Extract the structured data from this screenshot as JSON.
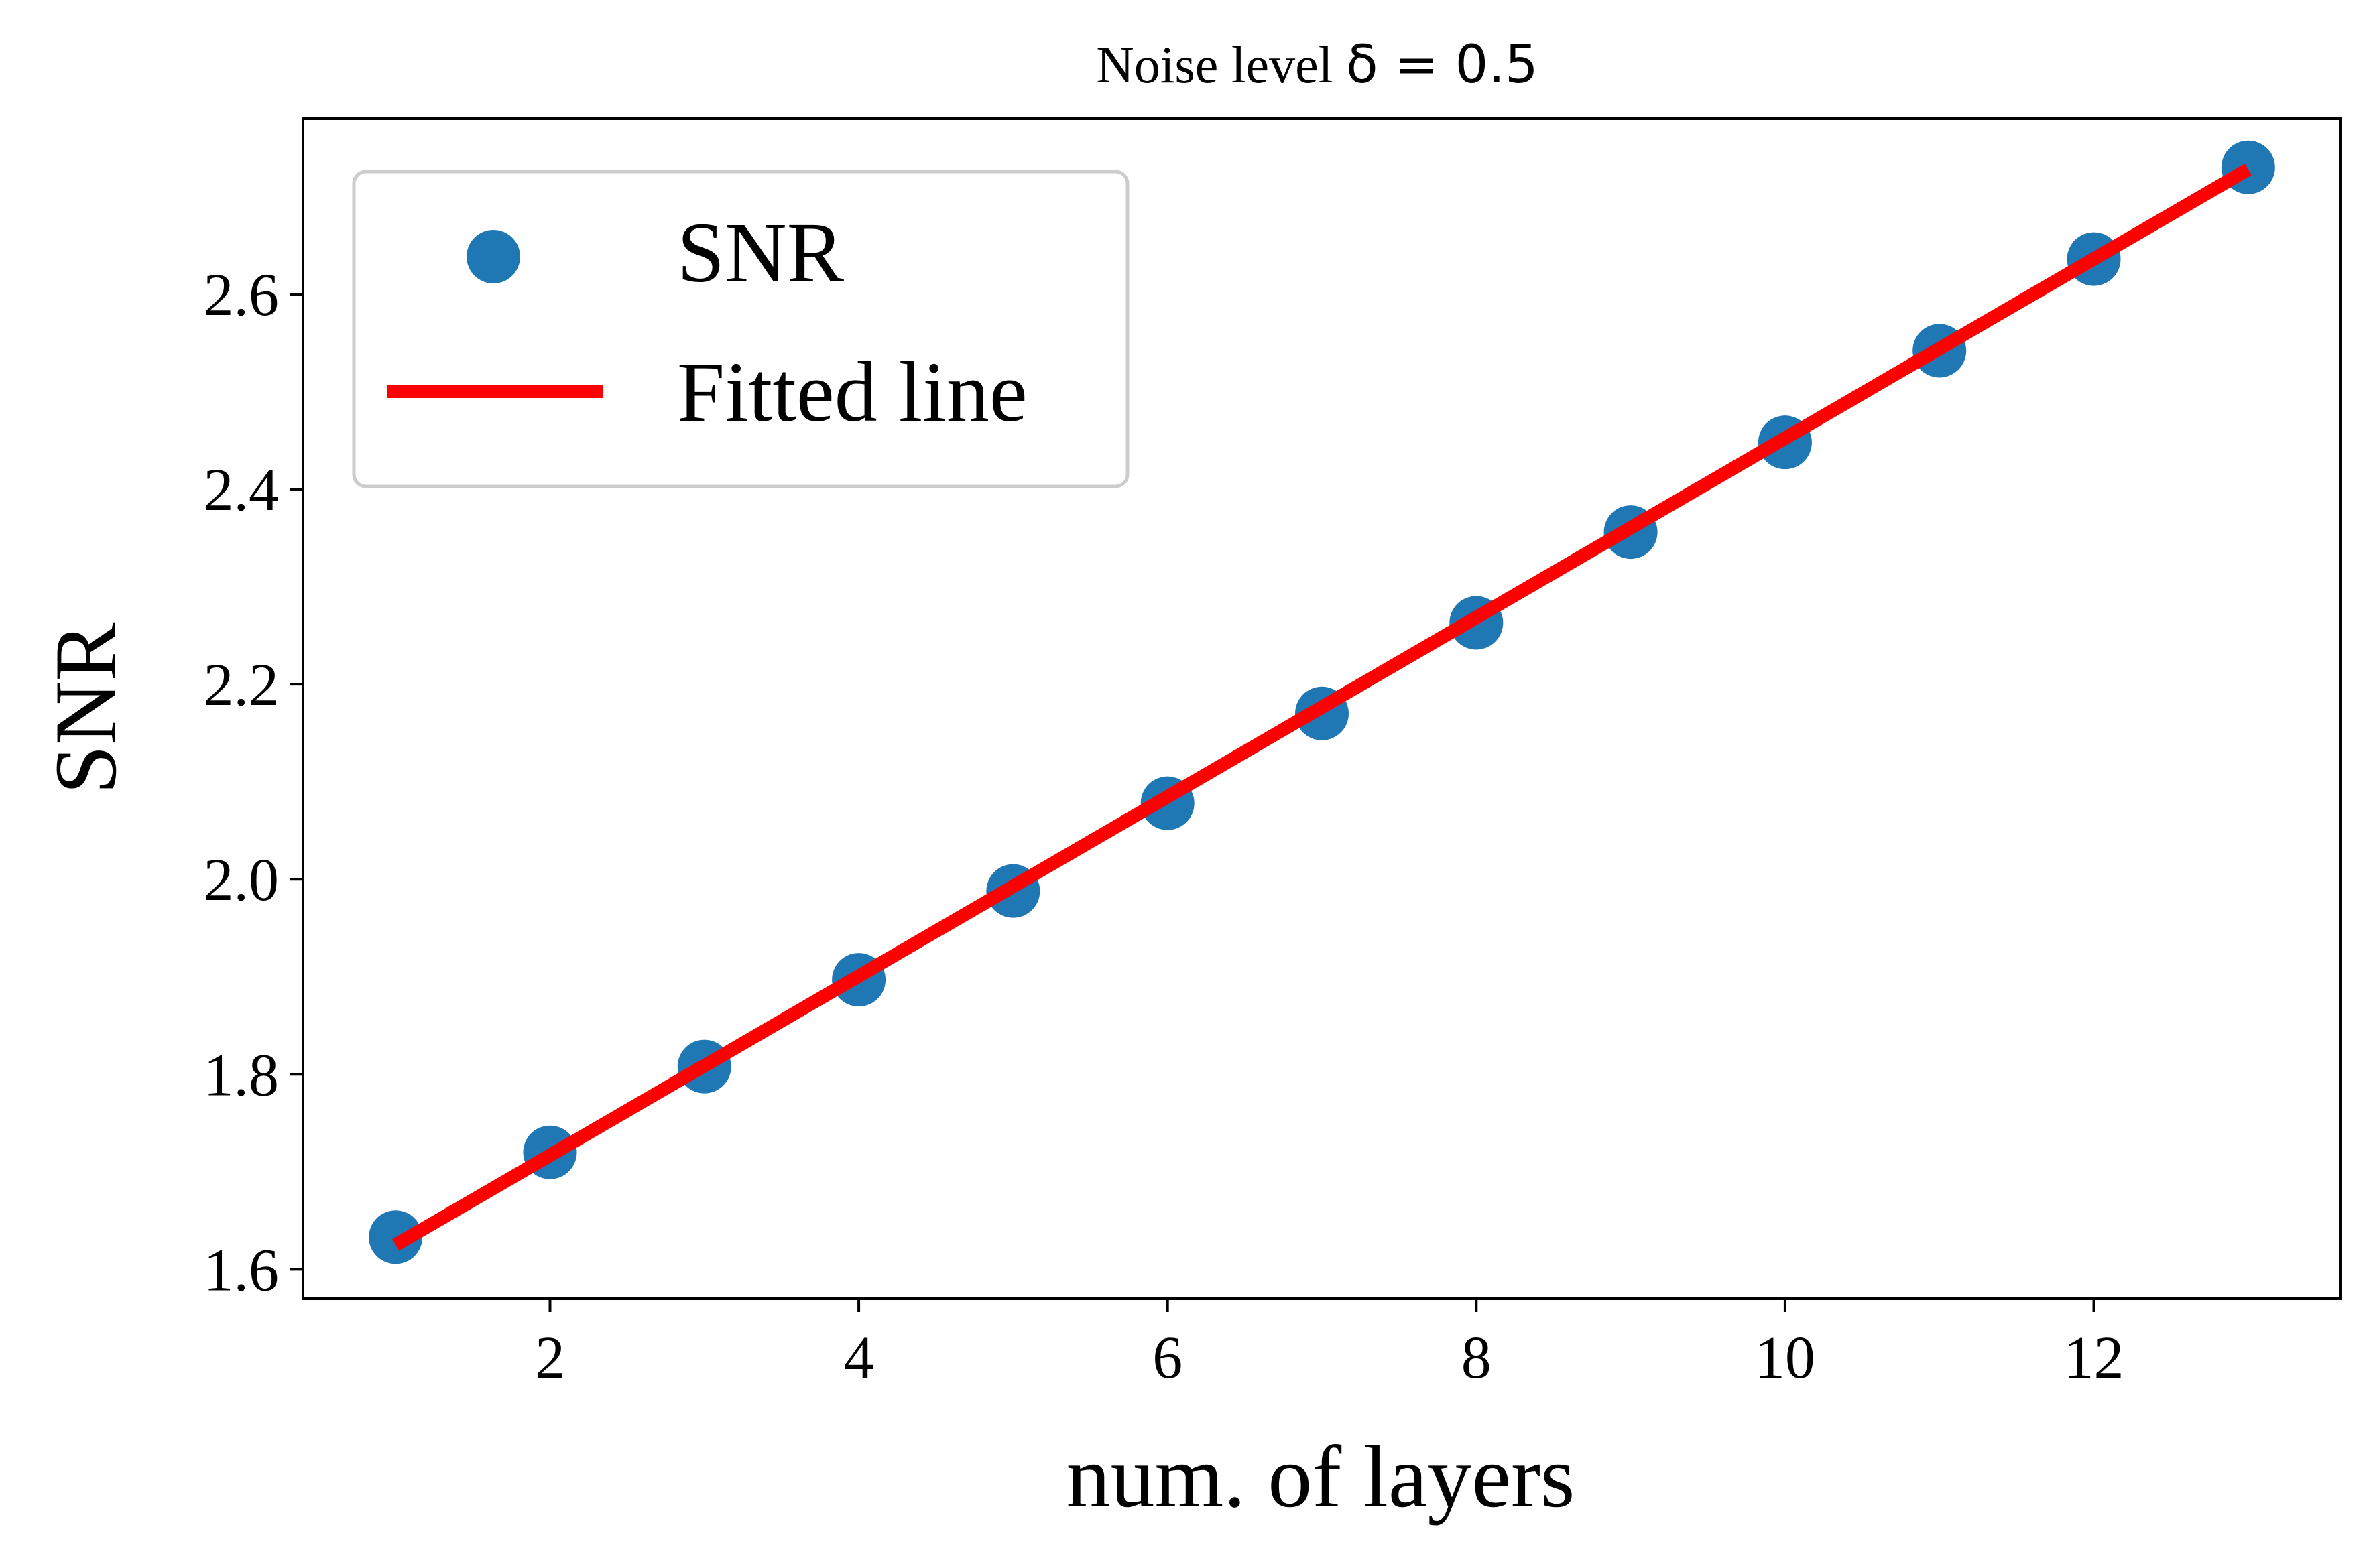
{
  "chart_data": {
    "type": "scatter",
    "title": "Noise level δ = 0.5",
    "title_parts": {
      "text": "Noise level ",
      "math": "δ = 0.5"
    },
    "xlabel": "num. of layers",
    "ylabel": "SNR",
    "xlim": [
      0.4,
      13.6
    ],
    "ylim": [
      1.57,
      2.78
    ],
    "xticks": [
      2,
      4,
      6,
      8,
      10,
      12
    ],
    "xtick_labels": [
      "2",
      "4",
      "6",
      "8",
      "10",
      "12"
    ],
    "yticks": [
      1.6,
      1.8,
      2.0,
      2.2,
      2.4,
      2.6
    ],
    "ytick_labels": [
      "1.6",
      "1.8",
      "2.0",
      "2.2",
      "2.4",
      "2.6"
    ],
    "grid": false,
    "legend_position": "top-left",
    "series": [
      {
        "name": "SNR",
        "kind": "scatter",
        "color": "#1f77b4",
        "x": [
          1,
          2,
          3,
          4,
          5,
          6,
          7,
          8,
          9,
          10,
          11,
          12,
          13
        ],
        "y": [
          1.633,
          1.72,
          1.808,
          1.897,
          1.988,
          2.078,
          2.17,
          2.263,
          2.356,
          2.448,
          2.542,
          2.636,
          2.73
        ]
      },
      {
        "name": "Fitted line",
        "kind": "line",
        "color": "#ff0000",
        "x": [
          1,
          13
        ],
        "y": [
          1.625,
          2.728
        ]
      }
    ]
  }
}
